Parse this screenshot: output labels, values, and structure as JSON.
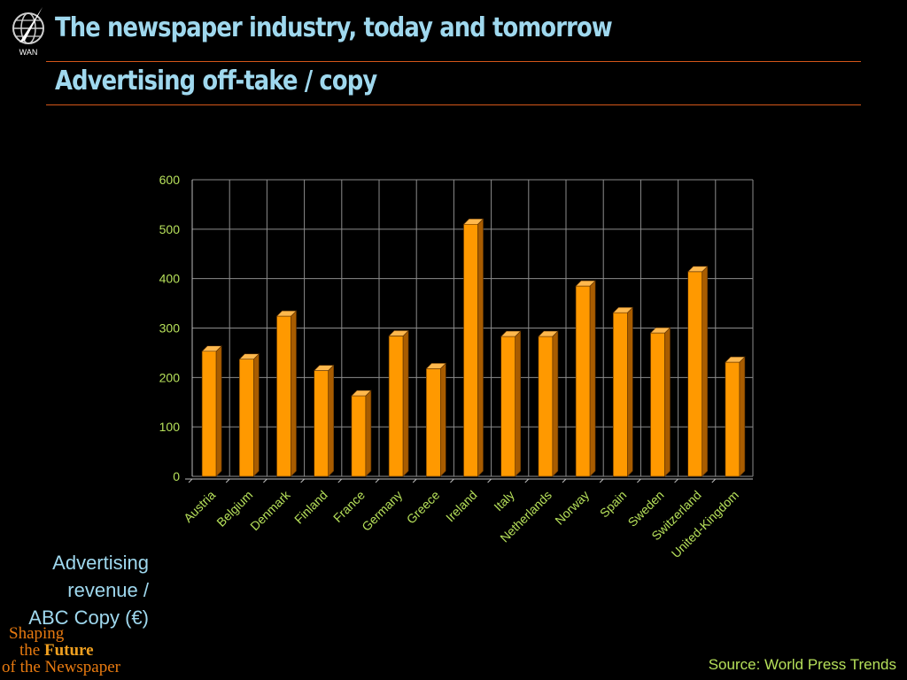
{
  "header": {
    "title": "The newspaper industry, today and tomorrow",
    "subtitle": "Advertising off-take / copy",
    "logo_text": "WAN"
  },
  "side_label": "Advertising\nrevenue /\nABC Copy (€)",
  "branding": {
    "line1": "Shaping",
    "line2_prefix": "the",
    "line2_bold": "Future",
    "line3": "of the Newspaper"
  },
  "source": "Source: World Press Trends",
  "colors": {
    "bar": "#ff9900",
    "bar_side": "#a85c00",
    "bar_top": "#ffb84d",
    "tick_labels": "#b6e05a",
    "title": "#9fd8ee",
    "rule": "#d4561a"
  },
  "chart_data": {
    "type": "bar",
    "title": "",
    "xlabel": "",
    "ylabel": "Advertising revenue / ABC Copy (€)",
    "ylim": [
      0,
      600
    ],
    "yticks": [
      0,
      100,
      200,
      300,
      400,
      500,
      600
    ],
    "grid": true,
    "categories": [
      "Austria",
      "Belgium",
      "Denmark",
      "Finland",
      "France",
      "Germany",
      "Greece",
      "Ireland",
      "Italy",
      "Netherlands",
      "Norway",
      "Spain",
      "Sweden",
      "Switzerland",
      "United-Kingdom"
    ],
    "values": [
      253,
      237,
      324,
      214,
      163,
      284,
      218,
      510,
      283,
      283,
      385,
      331,
      290,
      414,
      231
    ]
  }
}
